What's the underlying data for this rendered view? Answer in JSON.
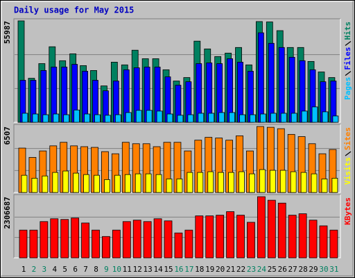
{
  "chart_data": [
    {
      "type": "bar",
      "title": "Daily usage for May 2015",
      "ylim": [
        0,
        55987
      ],
      "yticks": [
        55987
      ],
      "series": [
        {
          "name": "Hits",
          "color": "#008060",
          "values": [
            55987,
            24300,
            32400,
            41700,
            34000,
            37800,
            31300,
            28600,
            20100,
            33200,
            31700,
            39800,
            35100,
            35100,
            29000,
            22800,
            24700,
            44800,
            40500,
            36300,
            38200,
            41300,
            31700,
            55600,
            55400,
            50600,
            41300,
            41300,
            33600,
            27800,
            24700
          ]
        },
        {
          "name": "Files",
          "color": "#0000ff",
          "values": [
            23200,
            23200,
            28600,
            30500,
            30500,
            32000,
            28200,
            23200,
            17400,
            22800,
            29000,
            30100,
            30500,
            30500,
            25100,
            20500,
            22400,
            32400,
            32800,
            32400,
            35100,
            33200,
            28200,
            49400,
            43600,
            41300,
            35900,
            34000,
            29000,
            22400,
            22800
          ]
        },
        {
          "name": "Pages",
          "color": "#00c0ff",
          "values": [
            5000,
            4600,
            4200,
            4600,
            4200,
            6800,
            4600,
            4200,
            3900,
            4200,
            5400,
            6600,
            6600,
            6200,
            4600,
            3900,
            4200,
            5000,
            5000,
            5400,
            5400,
            4200,
            4200,
            4600,
            5000,
            5000,
            5000,
            6200,
            8500,
            5800,
            3500
          ]
        }
      ]
    },
    {
      "type": "bar",
      "ylim": [
        0,
        6507
      ],
      "yticks": [
        6507
      ],
      "series": [
        {
          "name": "Sites",
          "color": "#ff8000",
          "values": [
            4380,
            3460,
            4100,
            4600,
            4950,
            4600,
            4520,
            4450,
            4030,
            3820,
            4950,
            4810,
            4810,
            4520,
            4950,
            4950,
            4100,
            5160,
            5440,
            5370,
            5160,
            5590,
            4100,
            6507,
            6430,
            6290,
            5730,
            5510,
            4810,
            3820,
            4240
          ]
        },
        {
          "name": "Visits",
          "color": "#ffff00",
          "values": [
            1700,
            1410,
            1630,
            1980,
            2120,
            1910,
            1770,
            1700,
            1270,
            1700,
            1770,
            1840,
            1840,
            1770,
            1340,
            1340,
            1980,
            1980,
            2050,
            1980,
            1980,
            2050,
            1840,
            2260,
            2190,
            2190,
            2050,
            1980,
            1840,
            1340,
            1410
          ]
        }
      ]
    },
    {
      "type": "bar",
      "ylim": [
        0,
        2306687
      ],
      "yticks": [
        2306687
      ],
      "categories": [
        "1",
        "2",
        "3",
        "4",
        "5",
        "6",
        "7",
        "8",
        "9",
        "10",
        "11",
        "12",
        "13",
        "14",
        "15",
        "16",
        "17",
        "18",
        "19",
        "20",
        "21",
        "22",
        "23",
        "24",
        "25",
        "26",
        "27",
        "28",
        "29",
        "30",
        "31"
      ],
      "category_colors": [
        "#000000",
        "#008060",
        "#008060",
        "#000000",
        "#000000",
        "#000000",
        "#000000",
        "#000000",
        "#008060",
        "#008060",
        "#000000",
        "#000000",
        "#000000",
        "#000000",
        "#000000",
        "#008060",
        "#008060",
        "#000000",
        "#000000",
        "#000000",
        "#000000",
        "#000000",
        "#008060",
        "#008060",
        "#000000",
        "#000000",
        "#000000",
        "#000000",
        "#000000",
        "#008060",
        "#008060"
      ],
      "series": [
        {
          "name": "KBytes",
          "color": "#ff0000",
          "values": [
            1046000,
            1046000,
            1368000,
            1475000,
            1448000,
            1502000,
            1314000,
            1046000,
            805000,
            1046000,
            1368000,
            1422000,
            1368000,
            1475000,
            1395000,
            939000,
            1046000,
            1583000,
            1583000,
            1609000,
            1743000,
            1609000,
            1341000,
            2306687,
            2173000,
            2065000,
            1609000,
            1663000,
            1422000,
            1207000,
            1046000
          ]
        }
      ]
    }
  ]
}
